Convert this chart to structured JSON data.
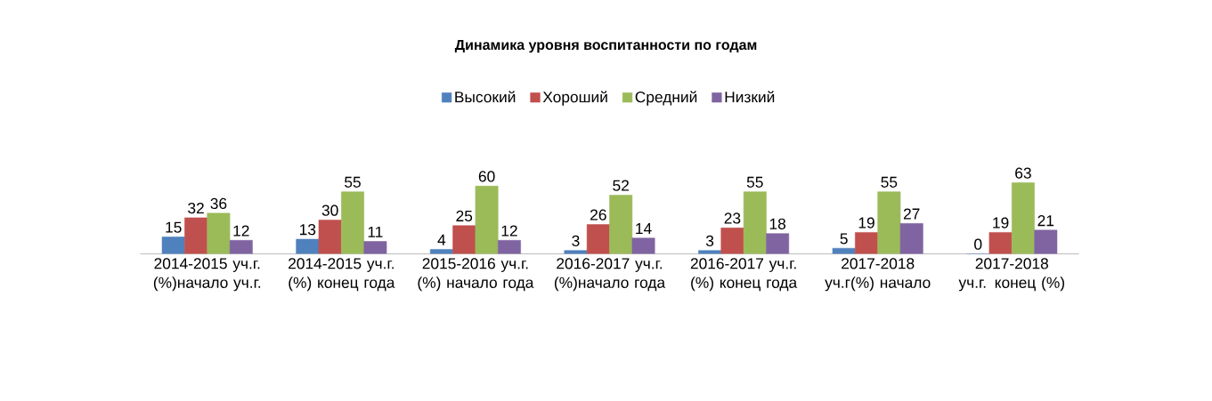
{
  "chart_data": {
    "type": "bar",
    "title": "Динамика  уровня воспитанности по годам",
    "categories": [
      "2014-2015 уч.г. (%)начало уч.г.",
      "2014-2015 уч.г. (%) конец года",
      "2015-2016 уч.г. (%) начало года",
      "2016-2017 уч.г. (%)начало года",
      "2016-2017 уч.г. (%) конец года",
      "2017-2018 уч.г(%) начало",
      "2017-2018 уч.г. конец (%)"
    ],
    "series": [
      {
        "name": "Высокий",
        "color": "#4f81bd",
        "values": [
          15,
          13,
          4,
          3,
          3,
          5,
          0
        ]
      },
      {
        "name": "Хороший",
        "color": "#c0504d",
        "values": [
          32,
          30,
          25,
          26,
          23,
          19,
          19
        ]
      },
      {
        "name": "Средний",
        "color": "#9bbb59",
        "values": [
          36,
          55,
          60,
          52,
          55,
          55,
          63
        ]
      },
      {
        "name": "Низкий",
        "color": "#8064a2",
        "values": [
          12,
          11,
          12,
          14,
          18,
          27,
          21
        ]
      }
    ],
    "data_labels": true,
    "legend": "top"
  }
}
